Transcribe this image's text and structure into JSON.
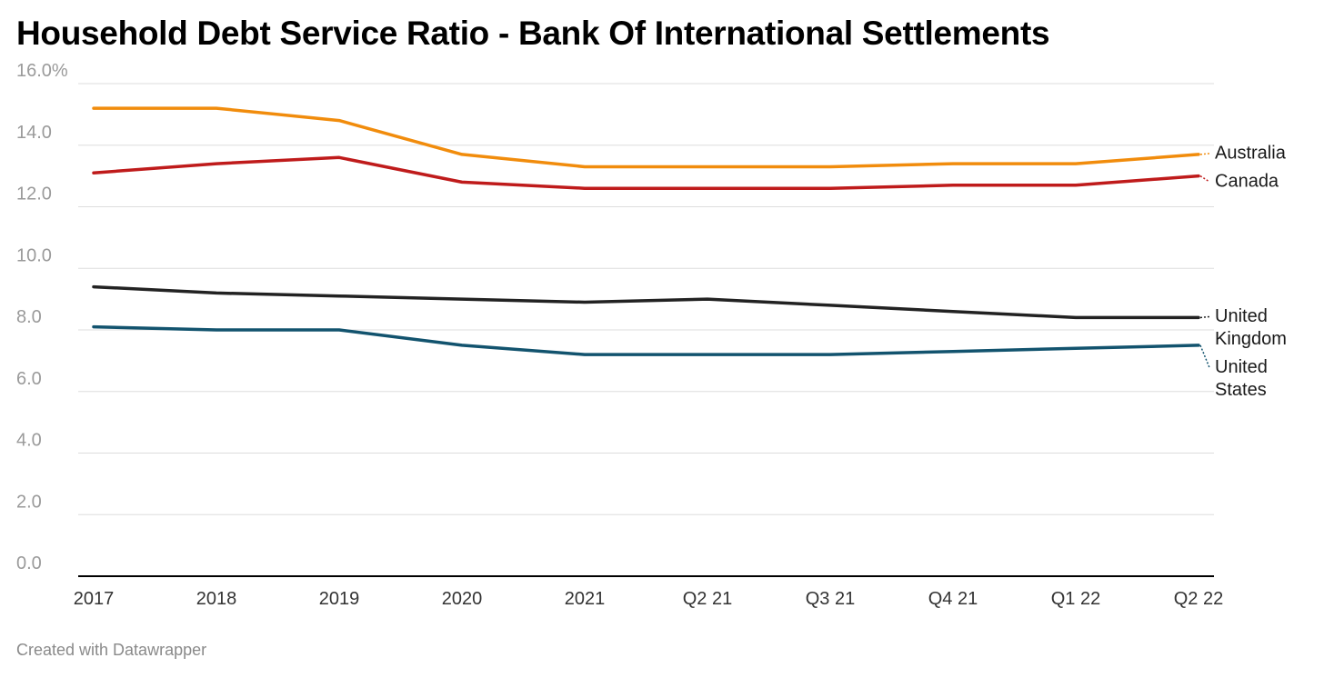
{
  "title": "Household Debt Service Ratio - Bank Of International Settlements",
  "footer": "Created with Datawrapper",
  "chart_data": {
    "type": "line",
    "title": "Household Debt Service Ratio - Bank Of International Settlements",
    "xlabel": "",
    "ylabel": "",
    "x": [
      "2017",
      "2018",
      "2019",
      "2020",
      "2021",
      "Q2 21",
      "Q3 21",
      "Q4 21",
      "Q1 22",
      "Q2 22"
    ],
    "ylim": [
      0,
      16
    ],
    "y_ticks": [
      0,
      2,
      4,
      6,
      8,
      10,
      12,
      14,
      16
    ],
    "y_tick_labels": [
      "0.0",
      "2.0",
      "4.0",
      "6.0",
      "8.0",
      "10.0",
      "12.0",
      "14.0",
      "16.0%"
    ],
    "grid": true,
    "legend": "direct labels at line ends (right)",
    "series": [
      {
        "name": "Australia",
        "color": "#f18c0c",
        "values": [
          15.2,
          15.2,
          14.8,
          13.7,
          13.3,
          13.3,
          13.3,
          13.4,
          13.4,
          13.7
        ]
      },
      {
        "name": "Canada",
        "color": "#bf1b1b",
        "values": [
          13.1,
          13.4,
          13.6,
          12.8,
          12.6,
          12.6,
          12.6,
          12.7,
          12.7,
          13.0
        ]
      },
      {
        "name": "United Kingdom",
        "color": "#222222",
        "values": [
          9.4,
          9.2,
          9.1,
          9.0,
          8.9,
          9.0,
          8.8,
          8.6,
          8.4,
          8.4
        ]
      },
      {
        "name": "United States",
        "color": "#12536e",
        "values": [
          8.1,
          8.0,
          8.0,
          7.5,
          7.2,
          7.2,
          7.2,
          7.3,
          7.4,
          7.5
        ]
      }
    ]
  }
}
